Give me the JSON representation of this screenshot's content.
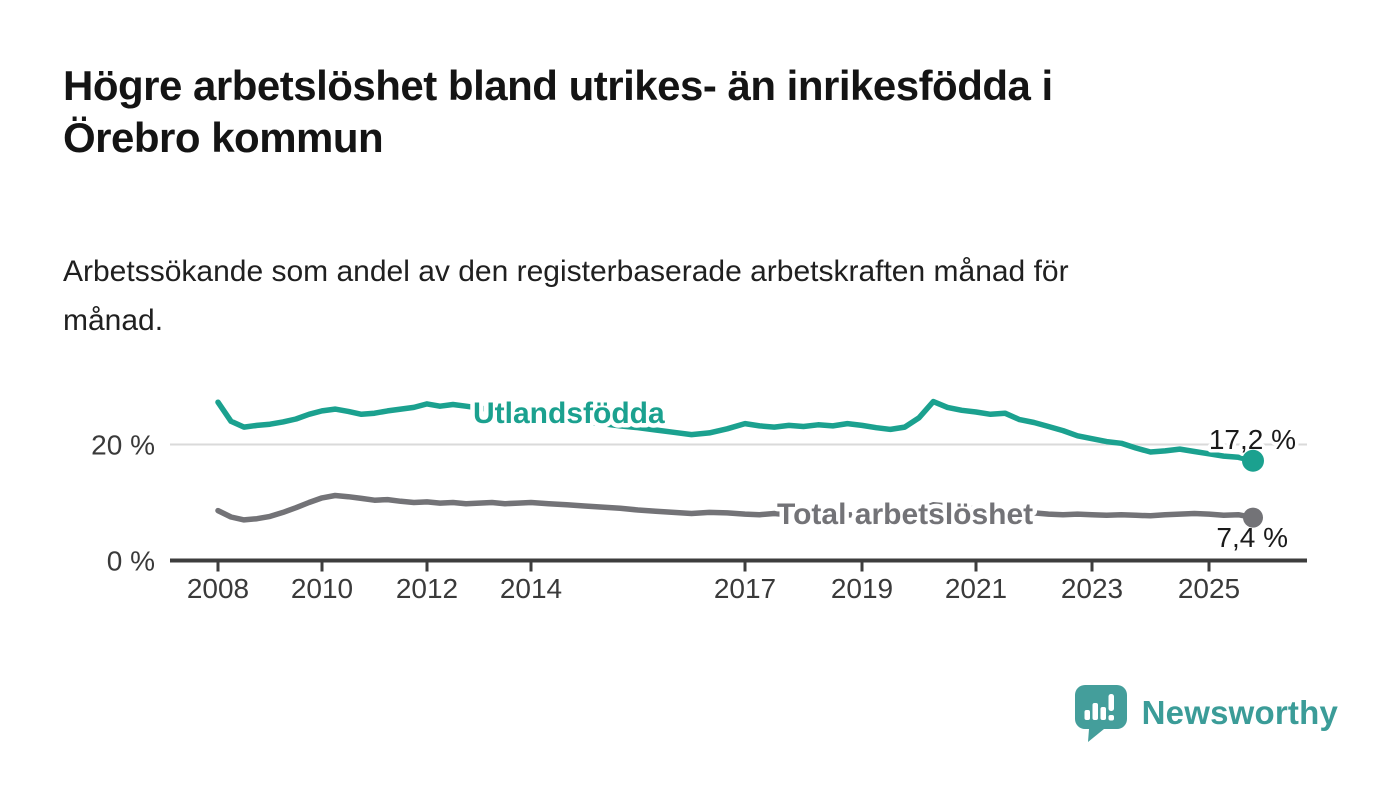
{
  "header": {
    "title": "Högre arbetslöshet bland utrikes- än inrikesfödda i\nÖrebro kommun",
    "subtitle": "Arbetssökande som andel av den registerbaserade arbetskraften månad för\nmånad."
  },
  "chart_data": {
    "type": "line",
    "title": "Högre arbetslöshet bland utrikes- än inrikesfödda i Örebro kommun",
    "subtitle": "Arbetssökande som andel av den registerbaserade arbetskraften månad för månad.",
    "unit": "%",
    "xlabel": "",
    "ylabel": "",
    "ylim": [
      0,
      30
    ],
    "x_range": [
      2008,
      2026.3
    ],
    "grid": "horizontal line at 20% only",
    "legend_position": "inline-labels-on-lines",
    "x_tick_labels": [
      "2008",
      "2010",
      "2012",
      "2014",
      "2017",
      "2019",
      "2021",
      "2023",
      "2025"
    ],
    "y_ticks": [
      {
        "value": 0,
        "label": "0 %"
      },
      {
        "value": 20,
        "label": "20 %"
      }
    ],
    "colors": {
      "grid": "#dadada",
      "axis": "#3d3d3d",
      "tick_text": "#3a3a3a",
      "value_label_text": "#1a1a1a"
    },
    "series": [
      {
        "name": "Utlandsfödda",
        "color": "#1ba18f",
        "end_label": "17,2 %",
        "end_value": 17.2,
        "points": [
          [
            2008.0,
            27.3
          ],
          [
            2008.25,
            24.0
          ],
          [
            2008.5,
            23.0
          ],
          [
            2008.75,
            23.3
          ],
          [
            2009.0,
            23.5
          ],
          [
            2009.25,
            23.9
          ],
          [
            2009.5,
            24.4
          ],
          [
            2009.75,
            25.2
          ],
          [
            2010.0,
            25.8
          ],
          [
            2010.25,
            26.1
          ],
          [
            2010.5,
            25.7
          ],
          [
            2010.75,
            25.2
          ],
          [
            2011.0,
            25.4
          ],
          [
            2011.25,
            25.8
          ],
          [
            2011.5,
            26.1
          ],
          [
            2011.75,
            26.4
          ],
          [
            2012.0,
            27.0
          ],
          [
            2012.25,
            26.6
          ],
          [
            2012.5,
            26.9
          ],
          [
            2012.75,
            26.6
          ],
          [
            2013.0,
            26.3
          ],
          [
            2013.25,
            26.0
          ],
          [
            2013.5,
            25.6
          ],
          [
            2013.75,
            25.3
          ],
          [
            2014.0,
            24.9
          ],
          [
            2014.25,
            24.6
          ],
          [
            2014.5,
            24.2
          ],
          [
            2014.75,
            23.9
          ],
          [
            2015.0,
            23.6
          ],
          [
            2015.25,
            23.2
          ],
          [
            2015.5,
            22.9
          ],
          [
            2015.75,
            22.5
          ],
          [
            2016.0,
            22.1
          ],
          [
            2016.25,
            21.7
          ],
          [
            2016.5,
            22.0
          ],
          [
            2016.75,
            22.7
          ],
          [
            2017.0,
            23.6
          ],
          [
            2017.25,
            23.2
          ],
          [
            2017.5,
            23.0
          ],
          [
            2017.75,
            23.3
          ],
          [
            2018.0,
            23.1
          ],
          [
            2018.25,
            23.4
          ],
          [
            2018.5,
            23.2
          ],
          [
            2018.75,
            23.6
          ],
          [
            2019.0,
            23.3
          ],
          [
            2019.25,
            22.9
          ],
          [
            2019.5,
            22.6
          ],
          [
            2019.75,
            23.0
          ],
          [
            2020.0,
            24.6
          ],
          [
            2020.25,
            27.4
          ],
          [
            2020.5,
            26.4
          ],
          [
            2020.75,
            25.9
          ],
          [
            2021.0,
            25.6
          ],
          [
            2021.25,
            25.2
          ],
          [
            2021.5,
            25.4
          ],
          [
            2021.75,
            24.3
          ],
          [
            2022.0,
            23.8
          ],
          [
            2022.25,
            23.1
          ],
          [
            2022.5,
            22.4
          ],
          [
            2022.75,
            21.5
          ],
          [
            2023.0,
            21.0
          ],
          [
            2023.25,
            20.5
          ],
          [
            2023.5,
            20.2
          ],
          [
            2023.75,
            19.4
          ],
          [
            2024.0,
            18.7
          ],
          [
            2024.25,
            18.9
          ],
          [
            2024.5,
            19.2
          ],
          [
            2024.75,
            18.8
          ],
          [
            2025.0,
            18.4
          ],
          [
            2025.25,
            18.0
          ],
          [
            2025.5,
            17.8
          ],
          [
            2025.75,
            17.2
          ]
        ]
      },
      {
        "name": "Total arbetslöshet",
        "color": "#737377",
        "end_label": "7,4 %",
        "end_value": 7.4,
        "points": [
          [
            2008.0,
            8.6
          ],
          [
            2008.25,
            7.5
          ],
          [
            2008.5,
            7.0
          ],
          [
            2008.75,
            7.2
          ],
          [
            2009.0,
            7.6
          ],
          [
            2009.25,
            8.3
          ],
          [
            2009.5,
            9.1
          ],
          [
            2009.75,
            10.0
          ],
          [
            2010.0,
            10.8
          ],
          [
            2010.25,
            11.2
          ],
          [
            2010.5,
            11.0
          ],
          [
            2010.75,
            10.7
          ],
          [
            2011.0,
            10.4
          ],
          [
            2011.25,
            10.5
          ],
          [
            2011.5,
            10.2
          ],
          [
            2011.75,
            10.0
          ],
          [
            2012.0,
            10.1
          ],
          [
            2012.25,
            9.9
          ],
          [
            2012.5,
            10.0
          ],
          [
            2012.75,
            9.8
          ],
          [
            2013.0,
            9.9
          ],
          [
            2013.25,
            10.0
          ],
          [
            2013.5,
            9.8
          ],
          [
            2013.75,
            9.9
          ],
          [
            2014.0,
            10.0
          ],
          [
            2014.25,
            9.8
          ],
          [
            2014.5,
            9.6
          ],
          [
            2014.75,
            9.4
          ],
          [
            2015.0,
            9.2
          ],
          [
            2015.25,
            9.0
          ],
          [
            2015.5,
            8.7
          ],
          [
            2015.75,
            8.5
          ],
          [
            2016.0,
            8.3
          ],
          [
            2016.25,
            8.1
          ],
          [
            2016.5,
            8.3
          ],
          [
            2016.75,
            8.2
          ],
          [
            2017.0,
            8.0
          ],
          [
            2017.25,
            7.9
          ],
          [
            2017.5,
            8.1
          ],
          [
            2017.75,
            7.9
          ],
          [
            2018.0,
            7.8
          ],
          [
            2018.25,
            7.9
          ],
          [
            2018.5,
            7.7
          ],
          [
            2018.75,
            7.9
          ],
          [
            2019.0,
            7.8
          ],
          [
            2019.25,
            7.9
          ],
          [
            2019.5,
            8.0
          ],
          [
            2019.75,
            8.2
          ],
          [
            2020.0,
            8.6
          ],
          [
            2020.25,
            9.6
          ],
          [
            2020.5,
            9.4
          ],
          [
            2020.75,
            9.1
          ],
          [
            2021.0,
            8.9
          ],
          [
            2021.25,
            8.7
          ],
          [
            2021.5,
            8.5
          ],
          [
            2021.75,
            8.3
          ],
          [
            2022.0,
            8.2
          ],
          [
            2022.25,
            8.0
          ],
          [
            2022.5,
            7.9
          ],
          [
            2022.75,
            8.0
          ],
          [
            2023.0,
            7.9
          ],
          [
            2023.25,
            7.8
          ],
          [
            2023.5,
            7.9
          ],
          [
            2023.75,
            7.8
          ],
          [
            2024.0,
            7.7
          ],
          [
            2024.25,
            7.9
          ],
          [
            2024.5,
            8.0
          ],
          [
            2024.75,
            8.1
          ],
          [
            2025.0,
            8.0
          ],
          [
            2025.25,
            7.8
          ],
          [
            2025.5,
            7.9
          ],
          [
            2025.75,
            7.4
          ]
        ]
      }
    ]
  },
  "footer": {
    "brand": "Newsworthy",
    "brand_color": "#3b9c98",
    "logo_icon": "bar-chart-speech-bubble-icon",
    "logo_color": "#449e9b"
  }
}
